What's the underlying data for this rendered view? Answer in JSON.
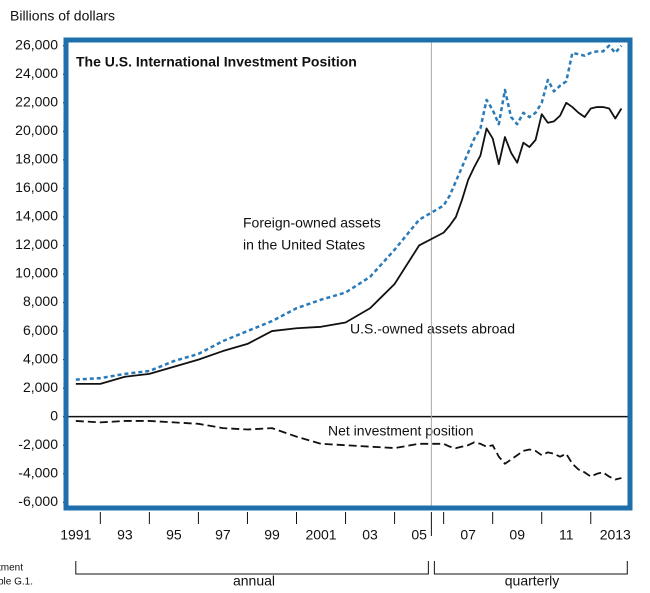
{
  "chart_data": {
    "type": "line",
    "title": "The U.S. International Investment Position",
    "y_axis_label": "Billions of dollars",
    "annotations": [
      "Foreign-owned assets",
      "in the United States",
      "U.S.-owned assets abroad",
      "Net investment position"
    ],
    "period_labels": [
      "annual",
      "quarterly"
    ],
    "source_fragments": [
      "tment",
      "ble G.1."
    ],
    "x": [
      1991,
      1992,
      1993,
      1994,
      1995,
      1996,
      1997,
      1998,
      1999,
      2000,
      2001,
      2002,
      2003,
      2004,
      2005,
      2006,
      2006.25,
      2006.5,
      2006.75,
      2007,
      2007.25,
      2007.5,
      2007.75,
      2008,
      2008.25,
      2008.5,
      2008.75,
      2009,
      2009.25,
      2009.5,
      2009.75,
      2010,
      2010.25,
      2010.5,
      2010.75,
      2011,
      2011.25,
      2011.5,
      2011.75,
      2012,
      2012.25,
      2012.5,
      2012.75,
      2013,
      2013.25
    ],
    "series": [
      {
        "color": "#2a7ab8",
        "dash": "dashed",
        "values": [
          2600,
          2700,
          3000,
          3200,
          3900,
          4400,
          5300,
          6000,
          6700,
          7600,
          8200,
          8700,
          9800,
          11700,
          13800,
          14800,
          15500,
          16500,
          17500,
          18500,
          19500,
          20200,
          22200,
          21500,
          20500,
          22900,
          21000,
          20500,
          21300,
          21000,
          21300,
          22000,
          23600,
          22800,
          23200,
          23500,
          25500,
          25400,
          25300,
          25500,
          25600,
          25600,
          26000,
          25500,
          26000
        ]
      },
      {
        "color": "#111111",
        "dash": "solid",
        "values": [
          2300,
          2300,
          2800,
          3000,
          3500,
          4000,
          4600,
          5100,
          6000,
          6200,
          6300,
          6600,
          7600,
          9300,
          12000,
          12900,
          13400,
          14000,
          15200,
          16600,
          17500,
          18300,
          20200,
          19500,
          17700,
          19600,
          18500,
          17800,
          19200,
          18900,
          19400,
          21200,
          20600,
          20700,
          21100,
          22000,
          21700,
          21300,
          21000,
          21600,
          21700,
          21700,
          21600,
          20900,
          21600
        ]
      },
      {
        "color": "#111111",
        "dash": "longdash",
        "values": [
          -300,
          -400,
          -300,
          -300,
          -400,
          -500,
          -800,
          -900,
          -800,
          -1400,
          -1900,
          -2000,
          -2100,
          -2200,
          -1900,
          -1900,
          -2100,
          -2200,
          -2100,
          -2000,
          -1800,
          -1900,
          -2100,
          -2000,
          -2800,
          -3300,
          -3000,
          -2700,
          -2400,
          -2300,
          -2400,
          -2700,
          -2500,
          -2600,
          -2800,
          -2600,
          -3300,
          -3700,
          -3900,
          -4200,
          -4000,
          -3900,
          -4200,
          -4400,
          -4300
        ]
      }
    ],
    "xlim": [
      1990.6,
      2013.6
    ],
    "xticks": [
      {
        "value": 1991,
        "label": "1991"
      },
      {
        "value": 1993,
        "label": "93"
      },
      {
        "value": 1995,
        "label": "95"
      },
      {
        "value": 1997,
        "label": "97"
      },
      {
        "value": 1999,
        "label": "99"
      },
      {
        "value": 2001,
        "label": "2001"
      },
      {
        "value": 2003,
        "label": "03"
      },
      {
        "value": 2005,
        "label": "05"
      },
      {
        "value": 2007,
        "label": "07"
      },
      {
        "value": 2009,
        "label": "09"
      },
      {
        "value": 2011,
        "label": "11"
      },
      {
        "value": 2013,
        "label": "2013"
      }
    ],
    "xminorticks": [
      1992,
      1994,
      1996,
      1998,
      2000,
      2002,
      2004,
      2006,
      2008,
      2010,
      2012
    ],
    "period_split": 2005.5,
    "ylim": [
      -6400,
      26400
    ],
    "yticks": [
      {
        "value": 26000,
        "label": "26,000"
      },
      {
        "value": 24000,
        "label": "24,000"
      },
      {
        "value": 22000,
        "label": "22,000"
      },
      {
        "value": 20000,
        "label": "20,000"
      },
      {
        "value": 18000,
        "label": "18,000"
      },
      {
        "value": 16000,
        "label": "16,000"
      },
      {
        "value": 14000,
        "label": "14,000"
      },
      {
        "value": 12000,
        "label": "12,000"
      },
      {
        "value": 10000,
        "label": "10,000"
      },
      {
        "value": 8000,
        "label": "8,000"
      },
      {
        "value": 6000,
        "label": "6,000"
      },
      {
        "value": 4000,
        "label": "4,000"
      },
      {
        "value": 2000,
        "label": "2,000"
      },
      0,
      {
        "value": -2000,
        "label": "-2,000"
      },
      {
        "value": -4000,
        "label": "-4,000"
      },
      {
        "value": -6000,
        "label": "-6,000"
      }
    ],
    "frame_color": "#1f6fad"
  }
}
